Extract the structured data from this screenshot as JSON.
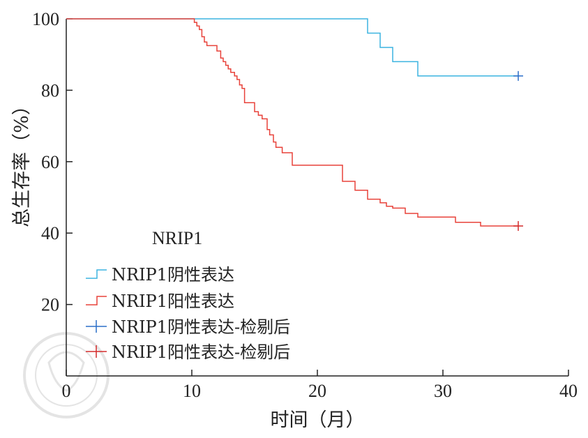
{
  "chart_data": {
    "type": "line",
    "xlabel": "时间（月）",
    "ylabel": "总生存率（%）",
    "xlim": [
      0,
      40
    ],
    "ylim": [
      0,
      100
    ],
    "xticks": [
      0,
      10,
      20,
      30,
      40
    ],
    "yticks": [
      20,
      40,
      60,
      80,
      100
    ],
    "grid": false,
    "legend_title": "NRIP1",
    "legend_position": "lower-left",
    "series": [
      {
        "name": "NRIP1阴性表达",
        "color": "#3bb4e0",
        "x": [
          0,
          24,
          24,
          25,
          25,
          26,
          26,
          28,
          28,
          36
        ],
        "y": [
          100,
          100,
          96,
          96,
          92,
          92,
          88,
          88,
          84,
          84
        ]
      },
      {
        "name": "NRIP1阳性表达",
        "color": "#e8423a",
        "x": [
          0,
          10.2,
          10.2,
          10.4,
          10.4,
          10.6,
          10.6,
          10.8,
          10.8,
          11,
          11,
          11.2,
          11.2,
          12,
          12,
          12.3,
          12.3,
          12.5,
          12.5,
          12.7,
          12.7,
          12.9,
          12.9,
          13.1,
          13.1,
          13.4,
          13.4,
          13.6,
          13.6,
          13.8,
          13.8,
          14,
          14,
          14.2,
          14.2,
          15,
          15,
          15.3,
          15.3,
          15.6,
          15.6,
          16,
          16,
          16.2,
          16.2,
          16.5,
          16.5,
          16.7,
          16.7,
          17.2,
          17.2,
          18,
          18,
          20,
          20,
          22,
          22,
          23,
          23,
          24,
          24,
          25,
          25,
          25.5,
          25.5,
          26,
          26,
          27,
          27,
          28,
          28,
          31,
          31,
          33,
          33,
          36
        ],
        "y": [
          100,
          100,
          99,
          99,
          98,
          98,
          97,
          97,
          95,
          95,
          93.5,
          93.5,
          92.5,
          92.5,
          91,
          91,
          89,
          89,
          88,
          88,
          87,
          87,
          86,
          86,
          85,
          85,
          84,
          84,
          83,
          83,
          81.5,
          81.5,
          80.5,
          80.5,
          76.5,
          76.5,
          74,
          74,
          73,
          73,
          72,
          72,
          69,
          69,
          67.5,
          67.5,
          65.5,
          65.5,
          64,
          64,
          62.5,
          62.5,
          59,
          59,
          59,
          59,
          54.5,
          54.5,
          52,
          52,
          49.5,
          49.5,
          48.5,
          48.5,
          47.5,
          47.5,
          47,
          47,
          45.5,
          45.5,
          44.5,
          44.5,
          43,
          43,
          42,
          42
        ]
      },
      {
        "name": "NRIP1阴性表达-检剔后",
        "color": "#2b6fc9",
        "marker": "+",
        "x": [
          36
        ],
        "y": [
          84
        ]
      },
      {
        "name": "NRIP1阳性表达-检剔后",
        "color": "#d42b2b",
        "marker": "+",
        "x": [
          36
        ],
        "y": [
          42
        ]
      }
    ]
  }
}
